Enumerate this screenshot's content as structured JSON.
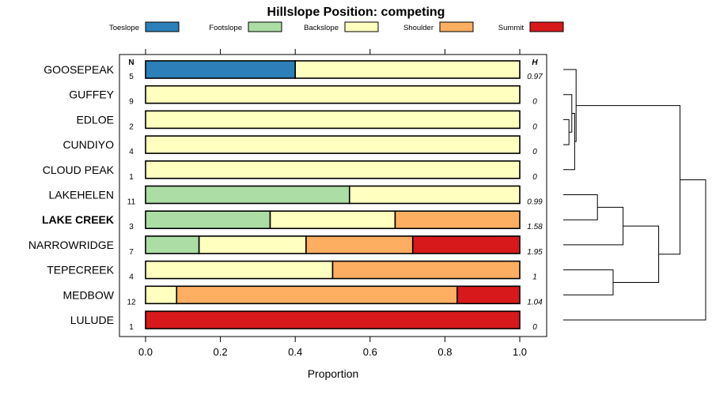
{
  "chart_data": {
    "type": "bar",
    "orientation": "horizontal",
    "stacked": true,
    "title": "Hillslope Position: competing",
    "xlabel": "Proportion",
    "ylabel": "",
    "xlim": [
      0,
      1
    ],
    "xticks": [
      "0.0",
      "0.2",
      "0.4",
      "0.6",
      "0.8",
      "1.0"
    ],
    "xtick_values": [
      0,
      0.2,
      0.4,
      0.6,
      0.8,
      1.0
    ],
    "n_header": "N",
    "h_header": "H",
    "legend_position": "top",
    "series": [
      {
        "name": "Toeslope",
        "color": "#2c7fb8"
      },
      {
        "name": "Footslope",
        "color": "#abdda4"
      },
      {
        "name": "Backslope",
        "color": "#ffffbf"
      },
      {
        "name": "Shoulder",
        "color": "#fdae61"
      },
      {
        "name": "Summit",
        "color": "#d7191c"
      }
    ],
    "categories": [
      {
        "name": "GOOSEPEAK",
        "bold": false,
        "n": "5",
        "h": "0.97",
        "values": [
          0.4,
          0,
          0.6,
          0,
          0
        ]
      },
      {
        "name": "GUFFEY",
        "bold": false,
        "n": "9",
        "h": "0",
        "values": [
          0,
          0,
          1,
          0,
          0
        ]
      },
      {
        "name": "EDLOE",
        "bold": false,
        "n": "2",
        "h": "0",
        "values": [
          0,
          0,
          1,
          0,
          0
        ]
      },
      {
        "name": "CUNDIYO",
        "bold": false,
        "n": "4",
        "h": "0",
        "values": [
          0,
          0,
          1,
          0,
          0
        ]
      },
      {
        "name": "CLOUD PEAK",
        "bold": false,
        "n": "1",
        "h": "0",
        "values": [
          0,
          0,
          1,
          0,
          0
        ]
      },
      {
        "name": "LAKEHELEN",
        "bold": false,
        "n": "11",
        "h": "0.99",
        "values": [
          0,
          0.545,
          0.455,
          0,
          0
        ]
      },
      {
        "name": "LAKE CREEK",
        "bold": true,
        "n": "3",
        "h": "1.58",
        "values": [
          0,
          0.333,
          0.334,
          0.333,
          0
        ]
      },
      {
        "name": "NARROWRIDGE",
        "bold": false,
        "n": "7",
        "h": "1.95",
        "values": [
          0,
          0.143,
          0.286,
          0.285,
          0.286
        ]
      },
      {
        "name": "TEPECREEK",
        "bold": false,
        "n": "4",
        "h": "1",
        "values": [
          0,
          0,
          0.5,
          0.5,
          0
        ]
      },
      {
        "name": "MEDBOW",
        "bold": false,
        "n": "12",
        "h": "1.04",
        "values": [
          0,
          0,
          0.083,
          0.75,
          0.167
        ]
      },
      {
        "name": "LULUDE",
        "bold": false,
        "n": "1",
        "h": "0",
        "values": [
          0,
          0,
          0,
          0,
          1
        ]
      }
    ],
    "dendrogram": {
      "merges": [
        {
          "a": 2,
          "b": 3,
          "height": 0.04
        },
        {
          "a": "m0",
          "b": 1,
          "height": 0.06
        },
        {
          "a": "m1",
          "b": 4,
          "height": 0.08
        },
        {
          "a": "m2",
          "b": 0,
          "height": 0.09
        },
        {
          "a": 5,
          "b": 6,
          "height": 0.24
        },
        {
          "a": "m4",
          "b": 7,
          "height": 0.42
        },
        {
          "a": 8,
          "b": 9,
          "height": 0.35
        },
        {
          "a": "m5",
          "b": "m6",
          "height": 0.67
        },
        {
          "a": "m3",
          "b": "m7",
          "height": 0.82
        },
        {
          "a": "m8",
          "b": 10,
          "height": 1.0
        }
      ]
    }
  }
}
